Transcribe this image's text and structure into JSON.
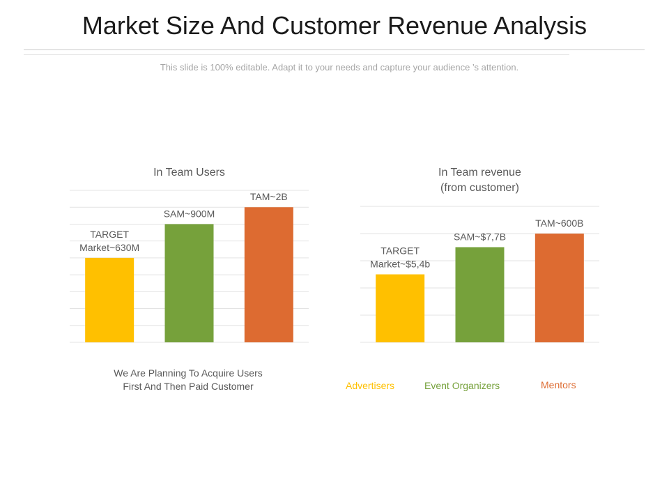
{
  "slide": {
    "title": "Market Size And Customer Revenue Analysis",
    "subtitle": "This slide is 100% editable. Adapt it to your needs and capture your  audience ’s attention.",
    "note": "We Are Planning To Acquire Users First And Then Paid Customer"
  },
  "colors": {
    "target": "#FFC000",
    "sam": "#76A13B",
    "tam": "#DD6B31"
  },
  "legend": [
    {
      "label": "Advertisers",
      "color": "#FFC000"
    },
    {
      "label": "Event Organizers",
      "color": "#76A13B"
    },
    {
      "label": "Mentors",
      "color": "#DD6B31"
    }
  ],
  "chart_data": [
    {
      "type": "bar",
      "title": "In Team Users",
      "xlabel": "",
      "ylabel": "",
      "grid": true,
      "ylim": [
        0,
        9
      ],
      "categories": [
        "TARGET Market~630M",
        "SAM~900M",
        "TAM~2B"
      ],
      "data_labels": [
        "TARGET\nMarket~630M",
        "SAM~900M",
        "TAM~2B"
      ],
      "values": [
        5,
        7,
        8
      ],
      "colors": [
        "#FFC000",
        "#76A13B",
        "#DD6B31"
      ]
    },
    {
      "type": "bar",
      "title": "In Team revenue\n(from customer)",
      "xlabel": "",
      "ylabel": "",
      "grid": true,
      "ylim": [
        0,
        5
      ],
      "categories": [
        "TARGET Market~$5,4b",
        "SAM~$7,7B",
        "TAM~600B"
      ],
      "data_labels": [
        "TARGET\nMarket~$5,4b",
        "SAM~$7,7B",
        "TAM~600B"
      ],
      "values": [
        2.5,
        3.5,
        4
      ],
      "colors": [
        "#FFC000",
        "#76A13B",
        "#DD6B31"
      ]
    }
  ]
}
